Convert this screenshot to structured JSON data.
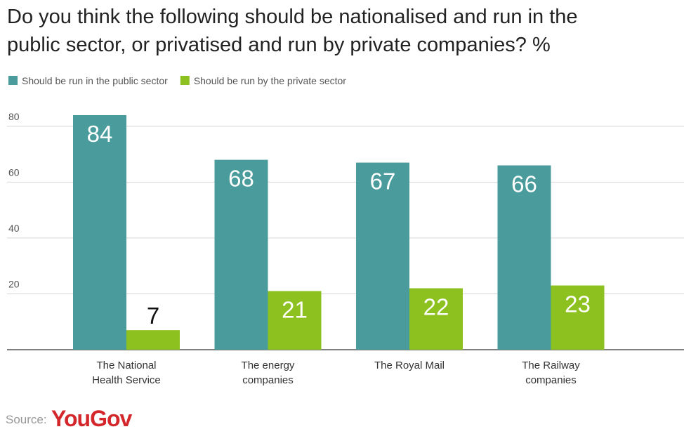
{
  "chart_data": {
    "type": "bar",
    "title": [
      "Do you think the following should be nationalised and run in the",
      "public sector, or privatised and run by private companies? %"
    ],
    "categories": [
      "The National\nHealth Service",
      "The energy\ncompanies",
      "The Royal Mail",
      "The Railway\ncompanies"
    ],
    "series": [
      {
        "name": "Should be run in the public sector",
        "color": "#4a9c9c",
        "values": [
          84,
          68,
          67,
          66
        ]
      },
      {
        "name": "Should be run by the private sector",
        "color": "#8cc11f",
        "values": [
          7,
          21,
          22,
          23
        ]
      }
    ],
    "ylim": [
      0,
      86
    ],
    "yticks": [
      20,
      40,
      60,
      80
    ],
    "grid": true,
    "source_label": "Source:",
    "source": "YouGov"
  }
}
